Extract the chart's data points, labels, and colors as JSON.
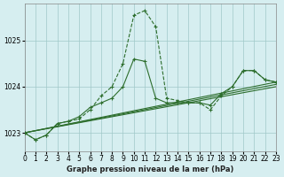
{
  "xlabel": "Graphe pression niveau de la mer (hPa)",
  "background_color": "#d6eef0",
  "grid_color": "#a0c8c8",
  "line_color": "#2d6e2d",
  "xlim": [
    0,
    23
  ],
  "ylim": [
    1022.6,
    1025.8
  ],
  "yticks": [
    1023,
    1024,
    1025
  ],
  "xticks": [
    0,
    1,
    2,
    3,
    4,
    5,
    6,
    7,
    8,
    9,
    10,
    11,
    12,
    13,
    14,
    15,
    16,
    17,
    18,
    19,
    20,
    21,
    22,
    23
  ],
  "series1": [
    1023.0,
    1022.85,
    1022.95,
    1023.2,
    1023.25,
    1023.3,
    1023.5,
    1023.8,
    1024.0,
    1024.5,
    1025.55,
    1025.65,
    1025.3,
    1023.75,
    1023.7,
    1023.65,
    1023.65,
    1023.5,
    1023.8,
    1024.0,
    1024.35,
    1024.35,
    1024.15,
    1024.1
  ],
  "series2": [
    1023.0,
    1022.85,
    1022.95,
    1023.2,
    1023.25,
    1023.35,
    1023.55,
    1023.65,
    1023.75,
    1024.0,
    1024.6,
    1024.55,
    1023.75,
    1023.65,
    1023.65,
    1023.65,
    1023.65,
    1023.6,
    1023.85,
    1024.0,
    1024.35,
    1024.35,
    1024.15,
    1024.1
  ],
  "trend1": [
    1023.0,
    1024.1
  ],
  "trend1_x": [
    0,
    23
  ],
  "trend2": [
    1023.0,
    1024.0
  ],
  "trend2_x": [
    0,
    23
  ],
  "trend3": [
    1023.0,
    1024.05
  ],
  "trend3_x": [
    0,
    23
  ]
}
